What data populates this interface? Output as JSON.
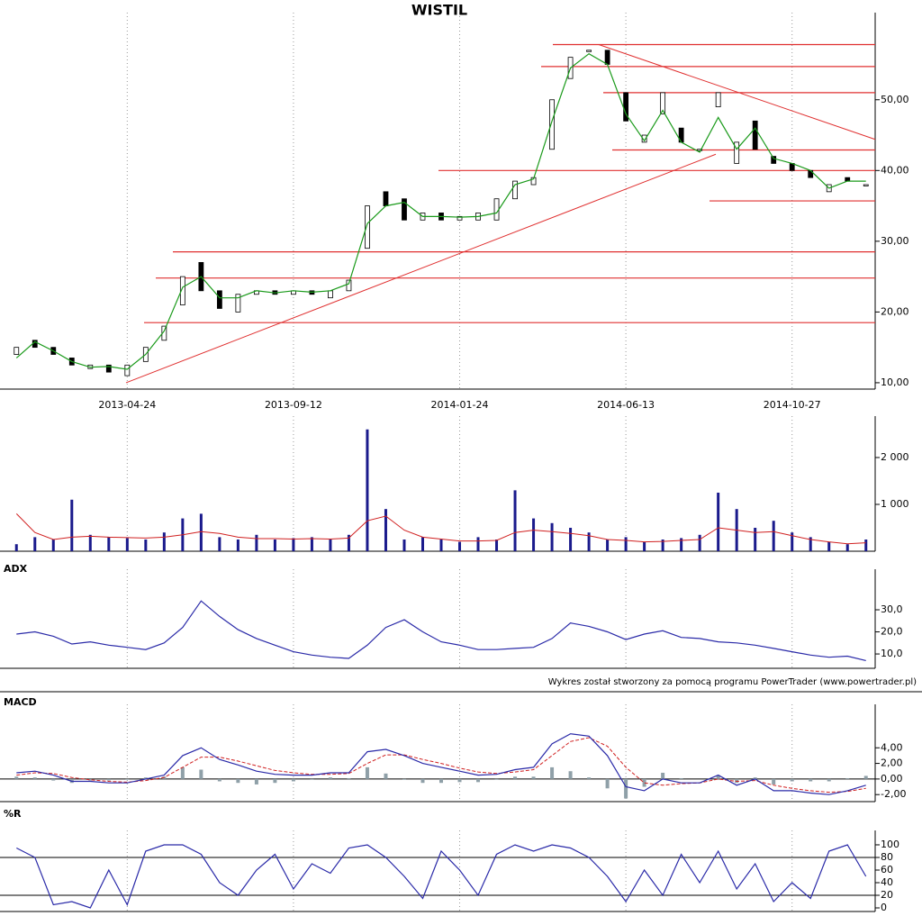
{
  "chart_data": [
    {
      "type": "candlestick",
      "title": "WISTIL",
      "categories": [
        null,
        null,
        null,
        null,
        null,
        null,
        "2013-04-24",
        null,
        null,
        null,
        null,
        null,
        null,
        null,
        null,
        "2013-09-12",
        null,
        null,
        null,
        null,
        null,
        null,
        null,
        null,
        "2014-01-24",
        null,
        null,
        null,
        null,
        null,
        null,
        null,
        null,
        "2014-06-13",
        null,
        null,
        null,
        null,
        null,
        null,
        null,
        null,
        "2014-10-27",
        null,
        null,
        null,
        null
      ],
      "open": [
        14,
        16,
        15,
        13.5,
        12,
        12.5,
        11,
        13,
        16,
        21,
        27,
        23,
        20,
        22.5,
        23,
        22.5,
        23,
        22,
        23,
        29,
        37,
        36,
        33,
        34,
        33,
        33,
        33,
        36,
        38,
        43,
        53,
        57,
        57,
        51,
        44,
        48,
        46,
        43,
        49,
        41,
        47,
        42,
        41,
        40,
        37,
        39,
        38
      ],
      "close": [
        15,
        15,
        14,
        12.5,
        12.5,
        11.5,
        12.5,
        15,
        18,
        25,
        23,
        20.5,
        22.5,
        23,
        22.5,
        23,
        22.5,
        23,
        24.5,
        35,
        35,
        33,
        34,
        33,
        33.5,
        34,
        36,
        38.5,
        39,
        50,
        56,
        57,
        55,
        47,
        45,
        51,
        44,
        43,
        51,
        44,
        43,
        41,
        40,
        39,
        38,
        38.5,
        38
      ],
      "ma": {
        "color": "#1a9a1a",
        "values": [
          13.5,
          15.8,
          14.5,
          13,
          12.2,
          12.3,
          11.9,
          14,
          17.3,
          23.5,
          25,
          22,
          22,
          23,
          22.7,
          23,
          22.8,
          23,
          24,
          32.5,
          35,
          35.5,
          33.5,
          33.5,
          33.4,
          33.5,
          34,
          38,
          38.8,
          47,
          54.5,
          56.5,
          55,
          48,
          44.2,
          48.5,
          44,
          42.6,
          47.5,
          43,
          46,
          41.7,
          41,
          40,
          37.5,
          38.5,
          38.5
        ]
      },
      "levels": [
        57.8,
        54.7,
        51.0,
        42.9,
        40.0,
        35.7,
        28.5,
        24.8,
        18.5
      ],
      "trendlines": [
        [
          10.0,
          42.3
        ],
        [
          57.8,
          44.4
        ]
      ],
      "line_color": "#e03030",
      "ylim": [
        9.1,
        61.3
      ],
      "yticks": [
        {
          "value": 10,
          "label": "10,00"
        },
        {
          "value": 20,
          "label": "20,00"
        },
        {
          "value": 30,
          "label": "30,00"
        },
        {
          "value": 40,
          "label": "40,00"
        },
        {
          "value": 50,
          "label": "50,00"
        }
      ]
    },
    {
      "type": "bar",
      "color": "#1a1a8c",
      "values": [
        150,
        300,
        250,
        1100,
        350,
        300,
        280,
        250,
        400,
        700,
        800,
        300,
        250,
        350,
        250,
        280,
        300,
        250,
        350,
        2600,
        900,
        250,
        300,
        250,
        200,
        300,
        250,
        1300,
        700,
        600,
        500,
        400,
        250,
        300,
        200,
        250,
        280,
        350,
        1250,
        900,
        500,
        650,
        400,
        300,
        200,
        150,
        250
      ],
      "ma": {
        "color": "#d02020",
        "values": [
          800,
          400,
          250,
          300,
          320,
          300,
          290,
          280,
          300,
          350,
          420,
          380,
          300,
          270,
          270,
          260,
          270,
          260,
          280,
          650,
          750,
          450,
          300,
          260,
          220,
          220,
          230,
          400,
          450,
          420,
          380,
          330,
          250,
          230,
          200,
          210,
          230,
          250,
          500,
          450,
          400,
          420,
          330,
          250,
          200,
          160,
          180
        ]
      },
      "ylim": [
        0,
        2730
      ],
      "yticks": [
        {
          "value": 1000,
          "label": "1 000"
        },
        {
          "value": 2000,
          "label": "2 000"
        }
      ]
    },
    {
      "type": "line",
      "title": "ADX",
      "color": "#2a2aa8",
      "values": [
        19,
        20,
        18,
        14.5,
        15.5,
        14,
        13,
        12,
        15,
        22,
        34,
        27,
        21,
        17,
        14,
        11,
        9.5,
        8.5,
        8,
        14,
        22,
        25.5,
        20,
        15.5,
        14,
        12,
        12,
        12.5,
        13,
        17,
        24,
        22.5,
        20,
        16.5,
        19,
        20.5,
        17.5,
        17,
        15.5,
        15,
        14,
        12.5,
        11,
        9.5,
        8.5,
        9,
        7
      ],
      "ylim": [
        3.5,
        45.1
      ],
      "yticks": [
        {
          "value": 10,
          "label": "10,0"
        },
        {
          "value": 20,
          "label": "20,0"
        },
        {
          "value": 30,
          "label": "30,0"
        }
      ]
    },
    {
      "type": "macd",
      "title": "MACD",
      "macd": {
        "color": "#2a2aa8",
        "values": [
          0.8,
          1,
          0.5,
          -0.3,
          -0.3,
          -0.5,
          -0.5,
          0,
          0.5,
          3,
          4,
          2.5,
          1.8,
          1,
          0.6,
          0.5,
          0.5,
          0.8,
          0.8,
          3.5,
          3.8,
          3,
          2,
          1.5,
          1,
          0.5,
          0.6,
          1.2,
          1.5,
          4.5,
          5.8,
          5.5,
          3,
          -1,
          -1.5,
          0,
          -0.5,
          -0.5,
          0.5,
          -0.8,
          0,
          -1.5,
          -1.5,
          -1.8,
          -2,
          -1.5,
          -0.8
        ]
      },
      "signal": {
        "color": "#d02020",
        "values": [
          0.5,
          0.8,
          0.7,
          0.2,
          -0.1,
          -0.3,
          -0.4,
          -0.2,
          0.2,
          1.5,
          2.8,
          2.8,
          2.3,
          1.7,
          1.1,
          0.8,
          0.6,
          0.6,
          0.7,
          2,
          3.1,
          3.1,
          2.5,
          2,
          1.4,
          0.9,
          0.7,
          0.9,
          1.2,
          3,
          4.8,
          5.3,
          4.2,
          1.5,
          -0.5,
          -0.8,
          -0.6,
          -0.5,
          0,
          -0.3,
          -0.2,
          -0.8,
          -1.2,
          -1.5,
          -1.7,
          -1.6,
          -1.2
        ]
      },
      "histogram": {
        "color": "#8fa0a8",
        "values": [
          0.3,
          0.2,
          -0.2,
          -0.5,
          -0.2,
          -0.2,
          -0.1,
          0.2,
          0.3,
          1.5,
          1.2,
          -0.3,
          -0.5,
          -0.7,
          -0.5,
          -0.3,
          -0.1,
          0.2,
          0.1,
          1.5,
          0.7,
          -0.1,
          -0.5,
          -0.5,
          -0.4,
          -0.4,
          -0.1,
          0.3,
          0.3,
          1.5,
          1,
          0.2,
          -1.2,
          -2.5,
          -1,
          0.8,
          0.1,
          0,
          0.5,
          -0.5,
          0.2,
          -0.7,
          -0.3,
          -0.3,
          -0.3,
          0.1,
          0.4
        ]
      },
      "ylim": [
        -2.9,
        8.65
      ],
      "yticks": [
        {
          "value": -2,
          "label": "-2,00"
        },
        {
          "value": 0,
          "label": "0,00"
        },
        {
          "value": 2,
          "label": "2,00"
        },
        {
          "value": 4,
          "label": "4,00"
        }
      ]
    },
    {
      "type": "line",
      "title": "%R",
      "color": "#2a2aa8",
      "values": [
        95,
        80,
        5,
        10,
        0,
        60,
        5,
        90,
        100,
        100,
        85,
        40,
        20,
        60,
        85,
        30,
        70,
        55,
        95,
        100,
        80,
        50,
        15,
        90,
        60,
        20,
        85,
        100,
        90,
        100,
        95,
        80,
        50,
        10,
        60,
        20,
        85,
        40,
        90,
        30,
        70,
        10,
        40,
        15,
        90,
        100,
        50
      ],
      "hlines": [
        80,
        20
      ],
      "ylim": [
        -5.7,
        111.4
      ],
      "yticks": [
        0,
        20,
        40,
        60,
        80,
        100
      ]
    }
  ],
  "footer": "Wykres został stworzony za pomocą programu PowerTrader (www.powertrader.pl)"
}
